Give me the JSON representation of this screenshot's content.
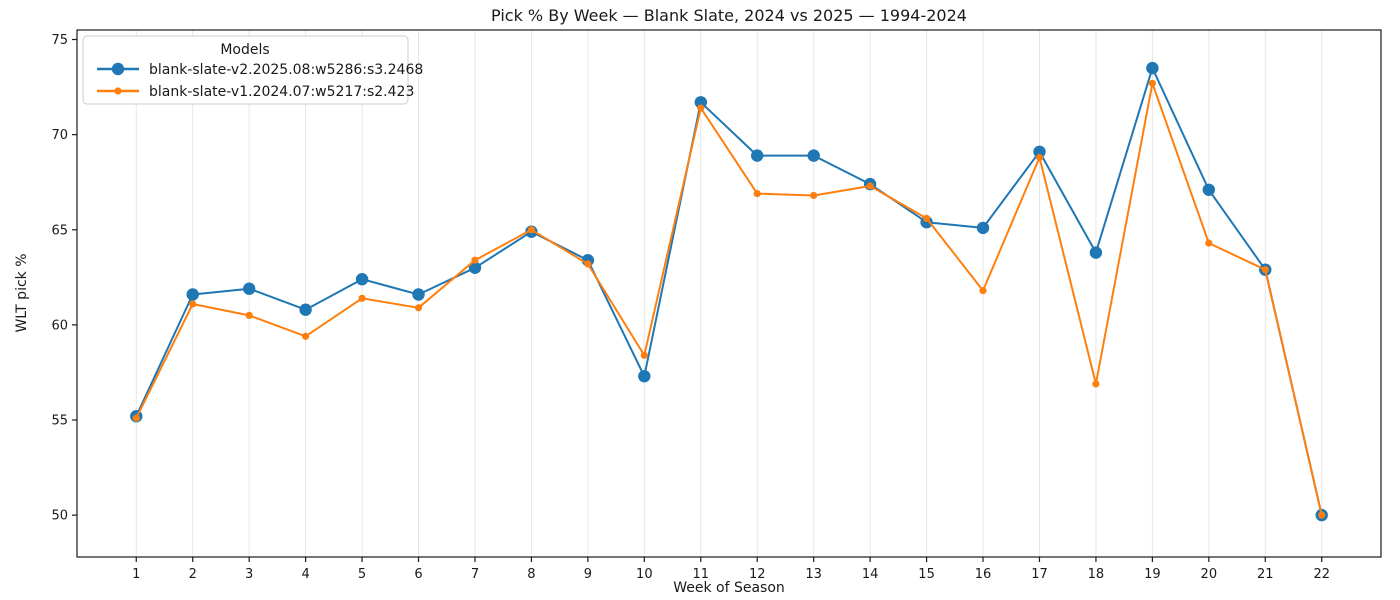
{
  "chart_data": {
    "type": "line",
    "title": "Pick % By Week — Blank Slate, 2024 vs 2025 — 1994-2024",
    "xlabel": "Week of Season",
    "ylabel": "WLT pick %",
    "legend_title": "Models",
    "legend_position": "upper left",
    "grid": "vertical-only",
    "x": [
      1,
      2,
      3,
      4,
      5,
      6,
      7,
      8,
      9,
      10,
      11,
      12,
      13,
      14,
      15,
      16,
      17,
      18,
      19,
      20,
      21,
      22
    ],
    "xticks": [
      1,
      2,
      3,
      4,
      5,
      6,
      7,
      8,
      9,
      10,
      11,
      12,
      13,
      14,
      15,
      16,
      17,
      18,
      19,
      20,
      21,
      22
    ],
    "yticks": [
      50,
      55,
      60,
      65,
      70,
      75
    ],
    "xlim": [
      -0.05,
      23.05
    ],
    "ylim": [
      47.8,
      75.5
    ],
    "series": [
      {
        "name": "blank-slate-v2.2025.08:w5286:s3.2468",
        "color": "#1f77b4",
        "marker": "circle",
        "marker_radius": 6.2,
        "values": [
          55.2,
          61.6,
          61.9,
          60.8,
          62.4,
          61.6,
          63.0,
          64.9,
          63.4,
          57.3,
          71.7,
          68.9,
          68.9,
          67.4,
          65.4,
          65.1,
          69.1,
          63.8,
          73.5,
          67.1,
          62.9,
          50.0
        ]
      },
      {
        "name": "blank-slate-v1.2024.07:w5217:s2.423",
        "color": "#ff7f0e",
        "marker": "circle",
        "marker_radius": 3.6,
        "values": [
          55.1,
          61.1,
          60.5,
          59.4,
          61.4,
          60.9,
          63.4,
          65.0,
          63.2,
          58.4,
          71.4,
          66.9,
          66.8,
          67.3,
          65.6,
          61.8,
          68.8,
          56.9,
          72.7,
          64.3,
          62.9,
          50.0
        ]
      }
    ],
    "colors": {
      "background": "#ffffff",
      "grid": "#e6e6e6",
      "axis": "#1a1a1a",
      "text": "#1a1a1a",
      "legend_border": "#cccccc",
      "legend_fill": "#ffffff"
    }
  }
}
